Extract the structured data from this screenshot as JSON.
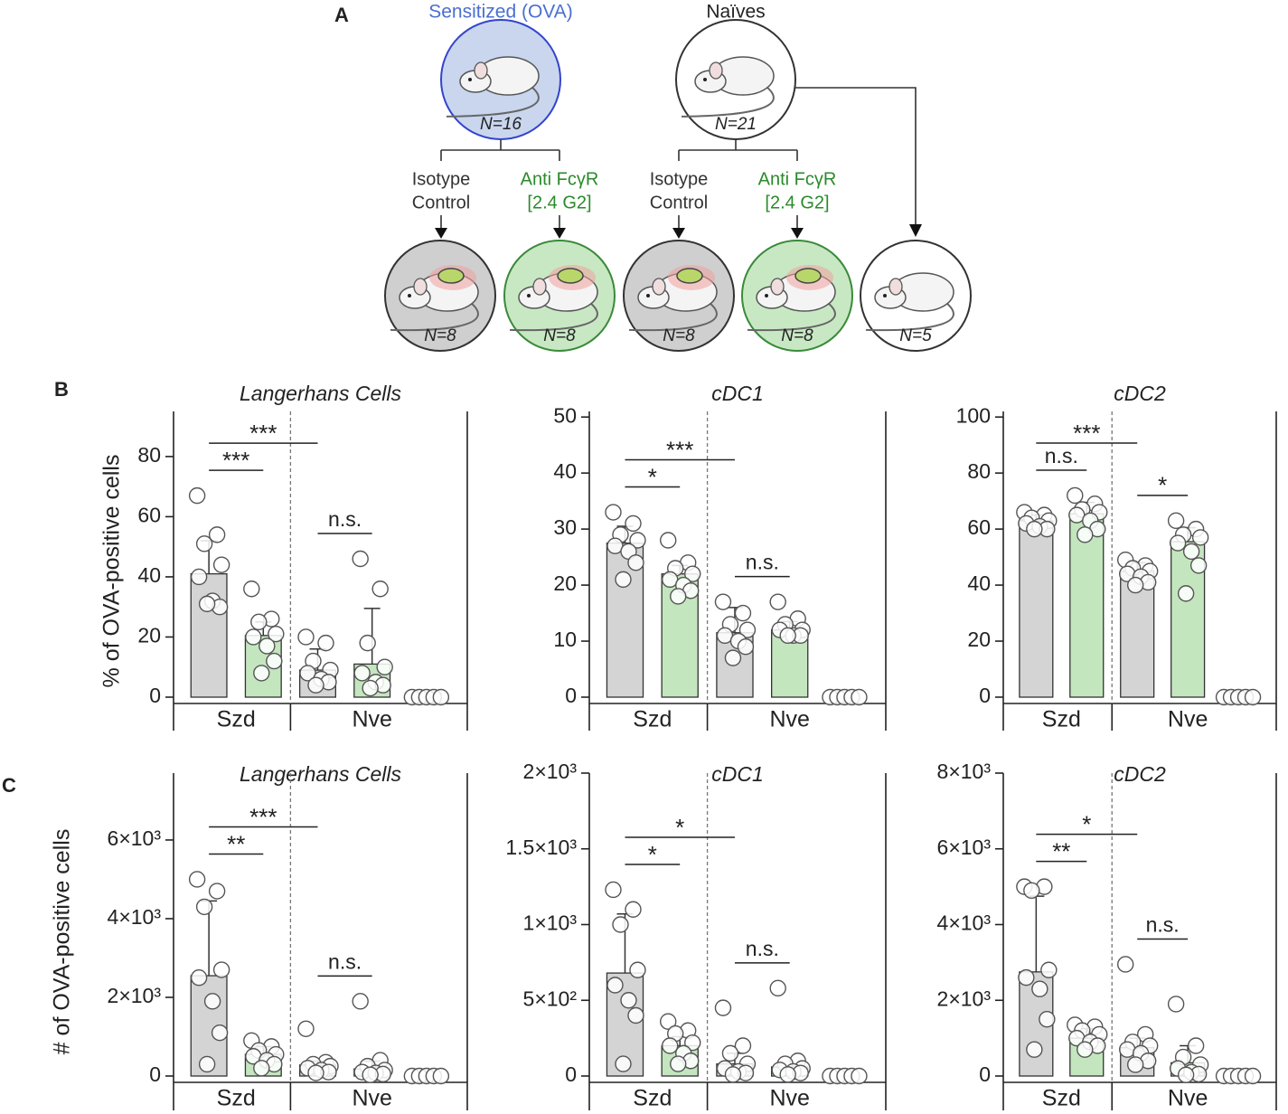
{
  "panel_labels": [
    "A",
    "B",
    "C"
  ],
  "diagram": {
    "top": [
      {
        "label": "Sensitized (OVA)",
        "n": "N=16"
      },
      {
        "label": "Naïves",
        "n": "N=21"
      }
    ],
    "treatments": [
      [
        "Isotype",
        "Control"
      ],
      [
        "Anti FcγR",
        "[2.4 G2]"
      ],
      [
        "Isotype",
        "Control"
      ],
      [
        "Anti FcγR",
        "[2.4 G2]"
      ]
    ],
    "bottom_n": [
      "N=8",
      "N=8",
      "N=8",
      "N=8",
      "N=5"
    ]
  },
  "chart_data": [
    {
      "type": "bar",
      "title": "Langerhans Cells",
      "ylabel": "% of OVA-positive cells",
      "ylim": [
        0,
        95
      ],
      "yticks": [
        0,
        20,
        40,
        60,
        80
      ],
      "groups": [
        "Szd",
        "Nve"
      ],
      "colors": [
        "#d4d4d4",
        "#c4e6bf",
        "#d4d4d4",
        "#c4e6bf",
        "#ffffff"
      ],
      "values": [
        41,
        20.5,
        9,
        11,
        0
      ],
      "errors": [
        11,
        4.5,
        7,
        18.5,
        0
      ],
      "points": [
        [
          67,
          54,
          51,
          44,
          40,
          32,
          30,
          31
        ],
        [
          36,
          26,
          25,
          21,
          20,
          17,
          12,
          8
        ],
        [
          20,
          18,
          12,
          9,
          8,
          6,
          5,
          4
        ],
        [
          46,
          36,
          18,
          10,
          8,
          5,
          4,
          3
        ],
        [
          0,
          0,
          0,
          0,
          0
        ]
      ],
      "significance": [
        {
          "label": "***",
          "from": 0,
          "to": 1
        },
        {
          "label": "***",
          "from": 0,
          "to": 2
        },
        {
          "label": "n.s.",
          "from": 2,
          "to": 3
        }
      ]
    },
    {
      "type": "bar",
      "title": "cDC1",
      "ylim": [
        0,
        51
      ],
      "yticks": [
        0,
        10,
        20,
        30,
        40,
        50
      ],
      "groups": [
        "Szd",
        "Nve"
      ],
      "colors": [
        "#d4d4d4",
        "#c4e6bf",
        "#d4d4d4",
        "#c4e6bf",
        "#ffffff"
      ],
      "values": [
        27.5,
        22,
        11.5,
        12,
        0
      ],
      "errors": [
        3,
        1.5,
        4.5,
        1.5,
        0
      ],
      "points": [
        [
          33,
          31,
          29,
          28,
          27,
          26,
          24,
          21
        ],
        [
          28,
          24,
          23,
          22,
          21,
          20,
          19,
          18
        ],
        [
          17,
          15,
          13,
          12,
          11,
          10,
          9,
          7
        ],
        [
          17,
          14,
          13,
          12,
          12,
          11,
          11,
          11
        ],
        [
          0,
          0,
          0,
          0,
          0
        ]
      ],
      "significance": [
        {
          "label": "*",
          "from": 0,
          "to": 1
        },
        {
          "label": "***",
          "from": 0,
          "to": 2
        },
        {
          "label": "n.s.",
          "from": 2,
          "to": 3
        }
      ]
    },
    {
      "type": "bar",
      "title": "cDC2",
      "ylim": [
        0,
        102
      ],
      "yticks": [
        0,
        20,
        40,
        60,
        80,
        100
      ],
      "groups": [
        "Szd",
        "Nve"
      ],
      "colors": [
        "#d4d4d4",
        "#c4e6bf",
        "#d4d4d4",
        "#c4e6bf",
        "#ffffff"
      ],
      "values": [
        63,
        65.5,
        45,
        55.5,
        0
      ],
      "errors": [
        2,
        4,
        3,
        5,
        0
      ],
      "points": [
        [
          66,
          65,
          64,
          63,
          62,
          61,
          60,
          60
        ],
        [
          72,
          69,
          67,
          66,
          65,
          63,
          60,
          58
        ],
        [
          49,
          47,
          46,
          45,
          44,
          43,
          41,
          40
        ],
        [
          63,
          60,
          58,
          57,
          55,
          52,
          47,
          37
        ],
        [
          0,
          0,
          0,
          0,
          0
        ]
      ],
      "significance": [
        {
          "label": "n.s.",
          "from": 0,
          "to": 1
        },
        {
          "label": "***",
          "from": 0,
          "to": 2
        },
        {
          "label": "*",
          "from": 2,
          "to": 3
        }
      ]
    },
    {
      "type": "bar",
      "title": "Langerhans Cells",
      "ylabel": "# of OVA-positive cells",
      "ylim": [
        0,
        7700
      ],
      "yticks": [
        0,
        {
          "value": 2000,
          "label": "2×10³"
        },
        {
          "value": 4000,
          "label": "4×10³"
        },
        {
          "value": 6000,
          "label": "6×10³"
        }
      ],
      "groups": [
        "Szd",
        "Nve"
      ],
      "colors": [
        "#d4d4d4",
        "#c4e6bf",
        "#d4d4d4",
        "#c4e6bf",
        "#ffffff"
      ],
      "values": [
        2550,
        550,
        280,
        180,
        0
      ],
      "errors": [
        1900,
        200,
        100,
        200,
        0
      ],
      "points": [
        [
          5000,
          4700,
          4300,
          2700,
          2500,
          1900,
          1100,
          300
        ],
        [
          900,
          750,
          650,
          550,
          500,
          400,
          300,
          200
        ],
        [
          1200,
          350,
          300,
          250,
          200,
          150,
          100,
          80
        ],
        [
          1900,
          400,
          250,
          150,
          100,
          80,
          50,
          30
        ],
        [
          0,
          0,
          0,
          0,
          0
        ]
      ],
      "significance": [
        {
          "label": "**",
          "from": 0,
          "to": 1
        },
        {
          "label": "***",
          "from": 0,
          "to": 2
        },
        {
          "label": "n.s.",
          "from": 2,
          "to": 3
        }
      ]
    },
    {
      "type": "bar",
      "title": "cDC1",
      "ylim": [
        0,
        2000
      ],
      "yticks": [
        0,
        {
          "value": 500,
          "label": "5×10²"
        },
        {
          "value": 1000,
          "label": "1×10³"
        },
        {
          "value": 1500,
          "label": "1.5×10³"
        },
        {
          "value": 2000,
          "label": "2×10³"
        }
      ],
      "groups": [
        "Szd",
        "Nve"
      ],
      "colors": [
        "#d4d4d4",
        "#c4e6bf",
        "#d4d4d4",
        "#c4e6bf",
        "#ffffff"
      ],
      "values": [
        680,
        200,
        80,
        60,
        0
      ],
      "errors": [
        390,
        60,
        70,
        0,
        0
      ],
      "points": [
        [
          1230,
          1100,
          1000,
          700,
          600,
          500,
          400,
          80
        ],
        [
          360,
          300,
          280,
          220,
          200,
          150,
          100,
          80
        ],
        [
          450,
          200,
          150,
          80,
          50,
          30,
          20,
          10
        ],
        [
          580,
          100,
          80,
          50,
          40,
          30,
          20,
          10
        ],
        [
          0,
          0,
          0,
          0,
          0
        ]
      ],
      "significance": [
        {
          "label": "*",
          "from": 0,
          "to": 1
        },
        {
          "label": "*",
          "from": 0,
          "to": 2
        },
        {
          "label": "n.s.",
          "from": 2,
          "to": 3
        }
      ]
    },
    {
      "type": "bar",
      "title": "cDC2",
      "ylim": [
        0,
        8000
      ],
      "yticks": [
        0,
        {
          "value": 2000,
          "label": "2×10³"
        },
        {
          "value": 4000,
          "label": "4×10³"
        },
        {
          "value": 6000,
          "label": "6×10³"
        },
        {
          "value": 8000,
          "label": "8×10³"
        }
      ],
      "groups": [
        "Szd",
        "Nve"
      ],
      "colors": [
        "#d4d4d4",
        "#c4e6bf",
        "#d4d4d4",
        "#c4e6bf",
        "#ffffff"
      ],
      "values": [
        2750,
        1000,
        750,
        350,
        0
      ],
      "errors": [
        2000,
        250,
        250,
        450,
        0
      ],
      "points": [
        [
          5000,
          5000,
          4900,
          2800,
          2600,
          2300,
          1500,
          700
        ],
        [
          1350,
          1300,
          1200,
          1100,
          1000,
          900,
          800,
          700
        ],
        [
          2950,
          1100,
          900,
          800,
          700,
          600,
          400,
          300
        ],
        [
          1900,
          800,
          500,
          300,
          200,
          100,
          50,
          30
        ],
        [
          0,
          0,
          0,
          0,
          0
        ]
      ],
      "significance": [
        {
          "label": "**",
          "from": 0,
          "to": 1
        },
        {
          "label": "*",
          "from": 0,
          "to": 2
        },
        {
          "label": "n.s.",
          "from": 2,
          "to": 3
        }
      ]
    }
  ]
}
